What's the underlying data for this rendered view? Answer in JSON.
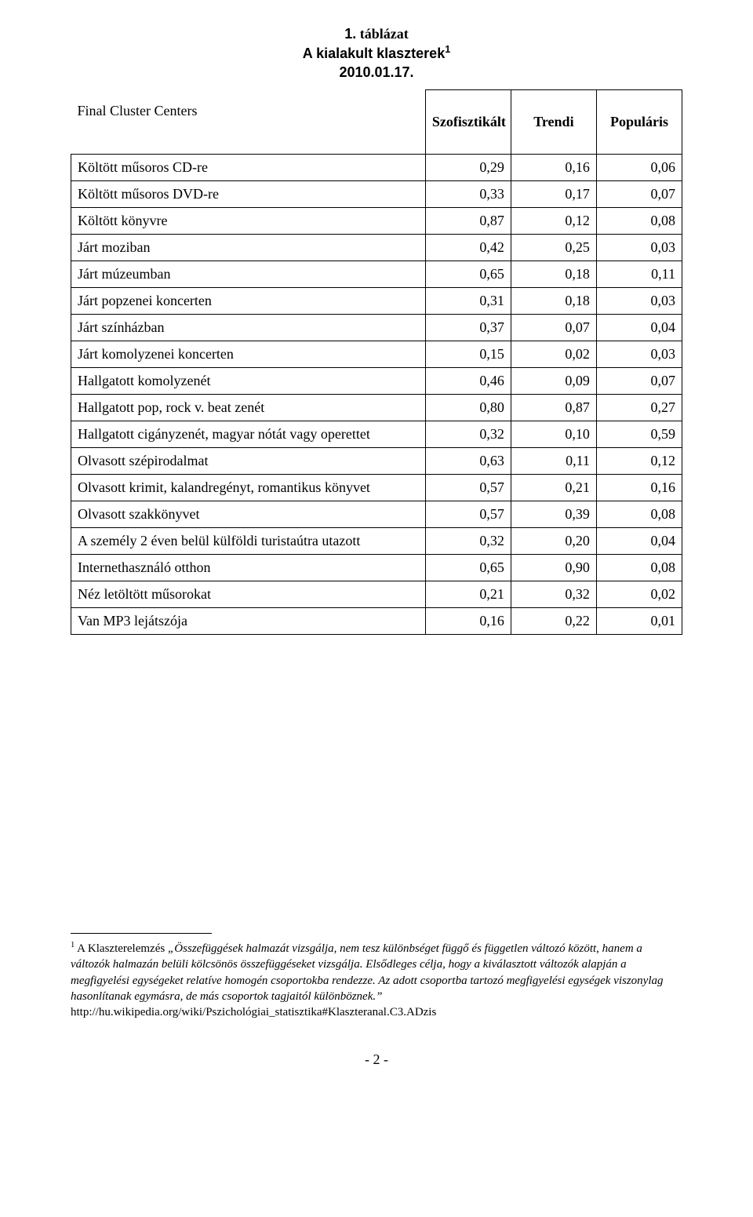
{
  "caption": {
    "line1_num": "1.",
    "line1_word": "táblázat",
    "line2_pre": "A kialakult klaszterek",
    "line2_sup": "1",
    "line3": "2010.01.17."
  },
  "table": {
    "top_left_label": "Final Cluster Centers",
    "columns": [
      "Szofisztikált",
      "Trendi",
      "Populáris"
    ],
    "rows": [
      {
        "label": "Költött műsoros CD-re",
        "v": [
          "0,29",
          "0,16",
          "0,06"
        ]
      },
      {
        "label": "Költött műsoros DVD-re",
        "v": [
          "0,33",
          "0,17",
          "0,07"
        ]
      },
      {
        "label": "Költött könyvre",
        "v": [
          "0,87",
          "0,12",
          "0,08"
        ]
      },
      {
        "label": "Járt moziban",
        "v": [
          "0,42",
          "0,25",
          "0,03"
        ]
      },
      {
        "label": "Járt múzeumban",
        "v": [
          "0,65",
          "0,18",
          "0,11"
        ]
      },
      {
        "label": "Járt popzenei koncerten",
        "v": [
          "0,31",
          "0,18",
          "0,03"
        ]
      },
      {
        "label": "Járt színházban",
        "v": [
          "0,37",
          "0,07",
          "0,04"
        ]
      },
      {
        "label": "Járt komolyzenei koncerten",
        "v": [
          "0,15",
          "0,02",
          "0,03"
        ]
      },
      {
        "label": "Hallgatott komolyzenét",
        "v": [
          "0,46",
          "0,09",
          "0,07"
        ]
      },
      {
        "label": "Hallgatott pop, rock v. beat zenét",
        "v": [
          "0,80",
          "0,87",
          "0,27"
        ]
      },
      {
        "label": "Hallgatott cigányzenét, magyar nótát vagy operettet",
        "v": [
          "0,32",
          "0,10",
          "0,59"
        ]
      },
      {
        "label": "Olvasott szépirodalmat",
        "v": [
          "0,63",
          "0,11",
          "0,12"
        ]
      },
      {
        "label": "Olvasott krimit, kalandregényt, romantikus könyvet",
        "v": [
          "0,57",
          "0,21",
          "0,16"
        ]
      },
      {
        "label": "Olvasott szakkönyvet",
        "v": [
          "0,57",
          "0,39",
          "0,08"
        ]
      },
      {
        "label": "A személy 2 éven belül külföldi turistaútra utazott",
        "v": [
          "0,32",
          "0,20",
          "0,04"
        ]
      },
      {
        "label": "Internethasználó otthon",
        "v": [
          "0,65",
          "0,90",
          "0,08"
        ]
      },
      {
        "label": "Néz letöltött műsorokat",
        "v": [
          "0,21",
          "0,32",
          "0,02"
        ]
      },
      {
        "label": "Van MP3 lejátszója",
        "v": [
          "0,16",
          "0,22",
          "0,01"
        ]
      }
    ]
  },
  "footnote": {
    "marker": "1",
    "lead": " A Klaszterelemzés ",
    "body": "„Összefüggések halmazát vizsgálja, nem tesz különbséget függő és független változó között, hanem a változók halmazán belüli kölcsönös összefüggéseket vizsgálja. Elsődleges célja, hogy a kiválasztott változók alapján a megfigyelési egységeket relatíve homogén csoportokba rendezze. Az adott csoportba tartozó megfigyelési egységek viszonylag hasonlítanak egymásra, de más csoportok tagjaitól különböznek.”",
    "link": "http://hu.wikipedia.org/wiki/Pszichológiai_statisztika#Klaszteranal.C3.ADzis"
  },
  "page_number": "- 2 -"
}
